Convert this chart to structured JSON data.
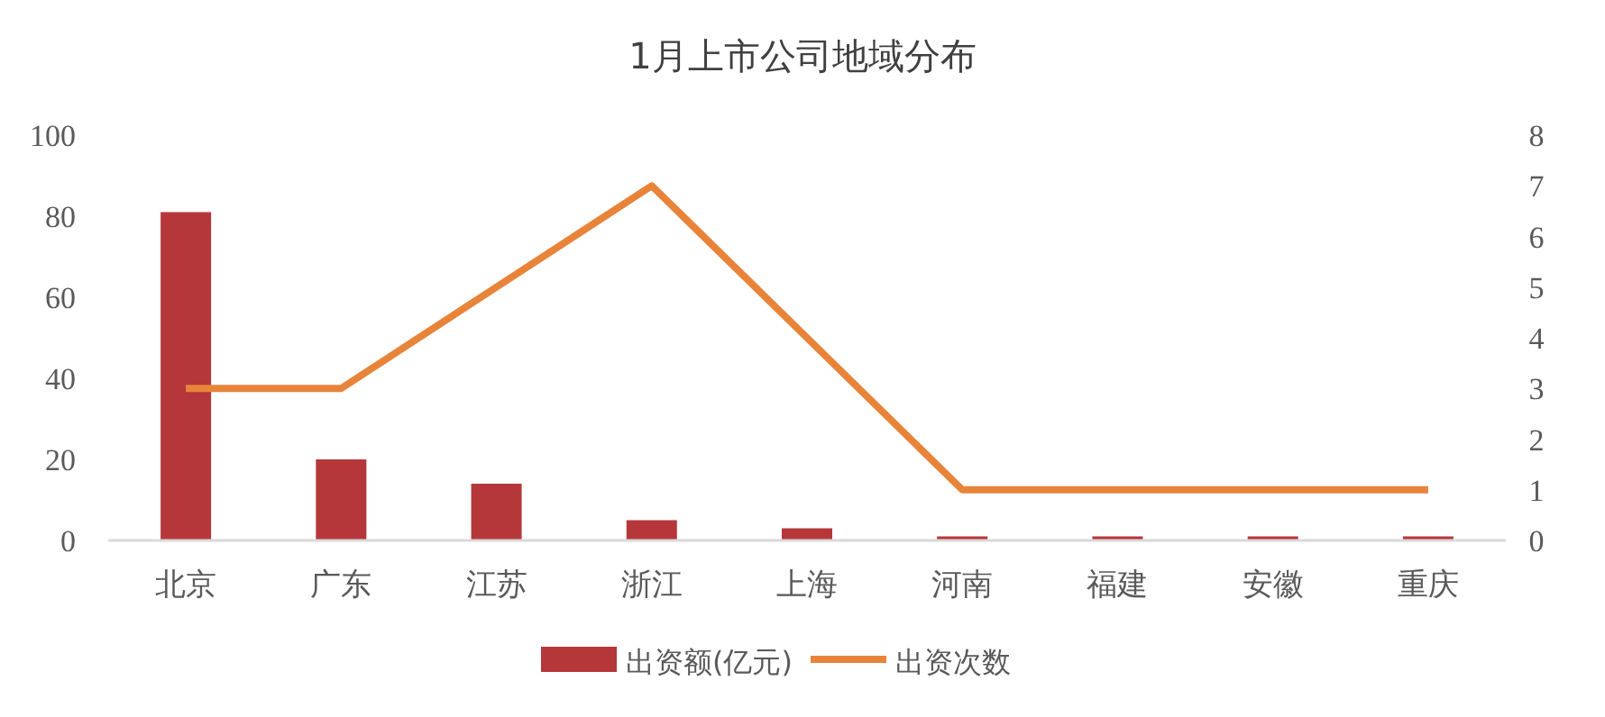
{
  "chart_data": {
    "type": "bar",
    "title": "1月上市公司地域分布",
    "categories": [
      "北京",
      "广东",
      "江苏",
      "浙江",
      "上海",
      "河南",
      "福建",
      "安徽",
      "重庆"
    ],
    "series": [
      {
        "name": "出资额(亿元)",
        "color": "#b5373a",
        "values": [
          81,
          20,
          14,
          5,
          3,
          1,
          1,
          1,
          1
        ]
      },
      {
        "name": "出资次数",
        "type": "line",
        "axis": "y2",
        "color": "#e8843a",
        "values": [
          3,
          3,
          5,
          7,
          4,
          1,
          1,
          1,
          1
        ]
      }
    ],
    "ylim": [
      0,
      100
    ],
    "yticks": [
      0,
      20,
      40,
      60,
      80,
      100
    ],
    "y2lim": [
      0,
      8
    ],
    "y2ticks": [
      0,
      1,
      2,
      3,
      4,
      5,
      6,
      7,
      8
    ],
    "grid": false,
    "legend": "bottom",
    "marker": "none",
    "line_style": "solid"
  }
}
